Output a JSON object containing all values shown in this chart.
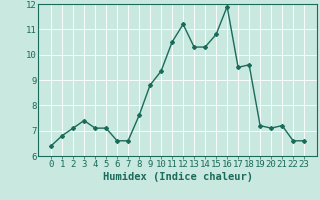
{
  "x": [
    0,
    1,
    2,
    3,
    4,
    5,
    6,
    7,
    8,
    9,
    10,
    11,
    12,
    13,
    14,
    15,
    16,
    17,
    18,
    19,
    20,
    21,
    22,
    23
  ],
  "y": [
    6.4,
    6.8,
    7.1,
    7.4,
    7.1,
    7.1,
    6.6,
    6.6,
    7.6,
    8.8,
    9.35,
    10.5,
    11.2,
    10.3,
    10.3,
    10.8,
    11.9,
    9.5,
    9.6,
    7.2,
    7.1,
    7.2,
    6.6,
    6.6
  ],
  "line_color": "#1a6b5a",
  "marker": "D",
  "marker_size": 2.0,
  "bg_color": "#c8e8e0",
  "grid_color": "#afd8ce",
  "xlabel": "Humidex (Indice chaleur)",
  "ylim": [
    6,
    12
  ],
  "yticks": [
    6,
    7,
    8,
    9,
    10,
    11,
    12
  ],
  "xticks": [
    0,
    1,
    2,
    3,
    4,
    5,
    6,
    7,
    8,
    9,
    10,
    11,
    12,
    13,
    14,
    15,
    16,
    17,
    18,
    19,
    20,
    21,
    22,
    23
  ],
  "xlabel_fontsize": 7.5,
  "tick_fontsize": 6.5,
  "line_width": 1.0
}
